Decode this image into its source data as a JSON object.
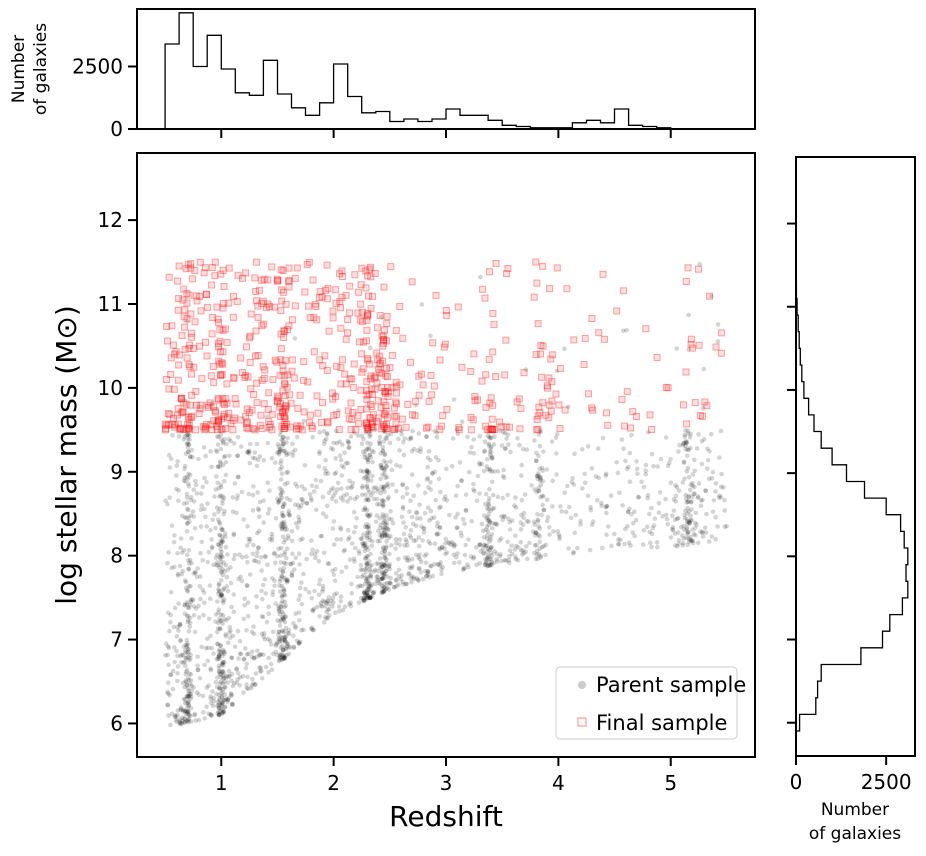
{
  "chart_data": [
    {
      "id": "main",
      "type": "scatter",
      "xlabel": "Redshift",
      "ylabel": "log stellar mass (M⊙)",
      "xlim": [
        0.25,
        5.75
      ],
      "ylim": [
        5.6,
        12.8
      ],
      "xticks": [
        1,
        2,
        3,
        4,
        5
      ],
      "yticks": [
        6,
        7,
        8,
        9,
        10,
        11,
        12
      ],
      "mass_cut": 9.5,
      "legend": {
        "position": "bottom-right"
      },
      "series": [
        {
          "name": "Parent sample",
          "marker": "circle",
          "color": "#000000",
          "approx_points": 2400,
          "description_density_by_redshift": [
            [
              0.5,
              0.8,
              5.95
            ],
            [
              1.0,
              1.0,
              6.1
            ],
            [
              1.5,
              0.9,
              6.7
            ],
            [
              2.0,
              0.8,
              7.3
            ],
            [
              2.5,
              0.7,
              7.6
            ],
            [
              3.0,
              0.5,
              7.8
            ],
            [
              3.5,
              0.5,
              7.9
            ],
            [
              4.0,
              0.15,
              8.0
            ],
            [
              4.5,
              0.2,
              8.1
            ],
            [
              5.0,
              0.4,
              8.1
            ],
            [
              5.5,
              0.2,
              8.2
            ]
          ],
          "clusters_z": [
            0.7,
            1.0,
            1.55,
            2.3,
            2.45,
            3.38,
            3.82,
            5.16
          ]
        },
        {
          "name": "Final sample",
          "marker": "square-open",
          "color": "#ff0000",
          "approx_points": 700,
          "mass_range": [
            9.5,
            11.6
          ]
        }
      ]
    },
    {
      "id": "top-hist",
      "type": "histogram",
      "orientation": "vertical",
      "ylabel": "Number\nof galaxies",
      "ylabel_lines": [
        "Number",
        "of galaxies"
      ],
      "yticks": [
        0,
        2500
      ],
      "ylim": [
        0,
        4800
      ],
      "bin_edges": [
        0.5,
        0.625,
        0.75,
        0.875,
        1.0,
        1.125,
        1.25,
        1.375,
        1.5,
        1.625,
        1.75,
        1.875,
        2.0,
        2.125,
        2.25,
        2.375,
        2.5,
        2.625,
        2.75,
        2.875,
        3.0,
        3.125,
        3.25,
        3.375,
        3.5,
        3.625,
        3.75,
        3.875,
        4.0,
        4.125,
        4.25,
        4.375,
        4.5,
        4.625,
        4.75,
        4.875,
        5.0,
        5.125,
        5.25,
        5.375,
        5.5
      ],
      "counts": [
        3400,
        4650,
        2500,
        3750,
        2400,
        1450,
        1350,
        2750,
        1400,
        850,
        550,
        1050,
        2600,
        1300,
        650,
        700,
        300,
        400,
        300,
        400,
        800,
        550,
        550,
        350,
        150,
        100,
        50,
        50,
        50,
        250,
        350,
        250,
        800,
        150,
        100,
        50,
        0,
        0,
        0,
        0
      ]
    },
    {
      "id": "right-hist",
      "type": "histogram",
      "orientation": "horizontal",
      "xlabel": "Number\nof galaxies",
      "xlabel_lines": [
        "Number",
        "of galaxies"
      ],
      "xticks": [
        0,
        2500
      ],
      "xlim": [
        0,
        3300
      ],
      "bin_edges": [
        5.9,
        6.1,
        6.3,
        6.5,
        6.7,
        6.9,
        7.1,
        7.3,
        7.5,
        7.7,
        7.9,
        8.1,
        8.3,
        8.5,
        8.7,
        8.9,
        9.1,
        9.3,
        9.5,
        9.7,
        9.9,
        10.1,
        10.3,
        10.5,
        10.7,
        10.9,
        11.1,
        11.3
      ],
      "counts": [
        100,
        550,
        600,
        700,
        1800,
        2400,
        2600,
        2950,
        3100,
        3050,
        3100,
        3000,
        2900,
        2500,
        1900,
        1400,
        1000,
        700,
        500,
        350,
        220,
        160,
        120,
        90,
        60,
        30,
        10
      ]
    }
  ],
  "legend_entries": [
    "Parent sample",
    "Final sample"
  ]
}
